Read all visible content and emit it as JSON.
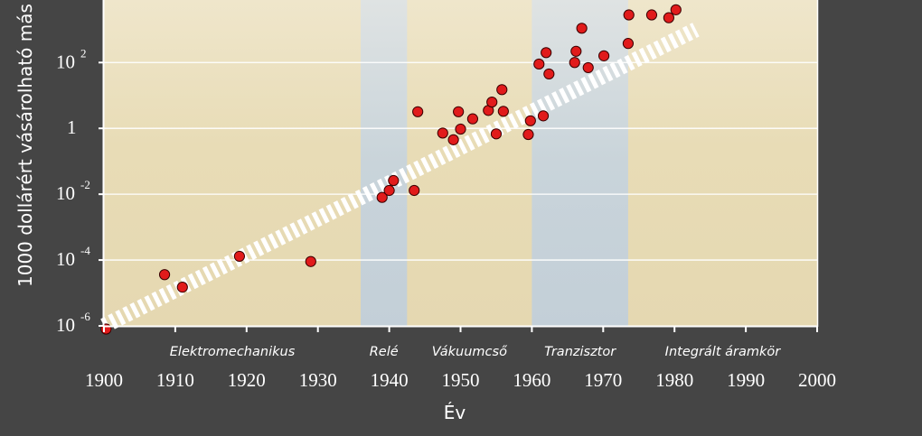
{
  "chart_data": {
    "type": "scatter",
    "title": "",
    "xlabel": "Év",
    "ylabel": "1000 dollárért vásárolható más",
    "xlim": [
      1900,
      2000
    ],
    "ylim_log10": [
      -6,
      3.9
    ],
    "y_scale": "log",
    "grid": true,
    "x_ticks": [
      "1900",
      "1910",
      "1920",
      "1930",
      "1940",
      "1950",
      "1960",
      "1970",
      "1980",
      "1990",
      "2000"
    ],
    "y_ticks": [
      {
        "base": "10",
        "exp": "-6"
      },
      {
        "base": "10",
        "exp": "-4"
      },
      {
        "base": "10",
        "exp": "-2"
      },
      {
        "base": "1",
        "exp": ""
      },
      {
        "base": "10",
        "exp": "2"
      }
    ],
    "eras": [
      {
        "name": "Elektromechanikus",
        "range": [
          1900,
          1936
        ]
      },
      {
        "name": "Relé",
        "range": [
          1936,
          1942.5
        ]
      },
      {
        "name": "Vákuumcső",
        "range": [
          1942.5,
          1960
        ]
      },
      {
        "name": "Tranzisztor",
        "range": [
          1960,
          1973.5
        ]
      },
      {
        "name": "Integrált áramkör",
        "range": [
          1973.5,
          2000
        ]
      }
    ],
    "highlighted_eras": [
      "Relé",
      "Tranzisztor"
    ],
    "trend": {
      "from": [
        1900,
        1e-06
      ],
      "to": [
        1983,
        1000
      ]
    },
    "series": [
      {
        "points": [
          [
            1900.3,
            8e-07
          ],
          [
            1908.5,
            3.6e-05
          ],
          [
            1911,
            1.5e-05
          ],
          [
            1919,
            0.00013
          ],
          [
            1929,
            9e-05
          ],
          [
            1939,
            0.008
          ],
          [
            1940,
            0.013
          ],
          [
            1940.6,
            0.026
          ],
          [
            1943.5,
            0.013
          ],
          [
            1944,
            3.2
          ],
          [
            1947.5,
            0.72
          ],
          [
            1949,
            0.45
          ],
          [
            1949.7,
            3.2
          ],
          [
            1950,
            0.95
          ],
          [
            1951.7,
            1.95
          ],
          [
            1953.9,
            3.5
          ],
          [
            1954.4,
            6.3
          ],
          [
            1955,
            0.68
          ],
          [
            1955.8,
            15
          ],
          [
            1956,
            3.3
          ],
          [
            1959.5,
            0.65
          ],
          [
            1959.8,
            1.7
          ],
          [
            1961,
            90
          ],
          [
            1961.6,
            2.4
          ],
          [
            1962,
            200
          ],
          [
            1962.4,
            45
          ],
          [
            1966,
            100
          ],
          [
            1966.2,
            220
          ],
          [
            1967,
            1100
          ],
          [
            1967.9,
            70
          ],
          [
            1970.1,
            160
          ],
          [
            1973.5,
            380
          ],
          [
            1973.6,
            2800
          ],
          [
            1976.8,
            2800
          ],
          [
            1979.2,
            2300
          ],
          [
            1980.2,
            4000
          ]
        ]
      }
    ],
    "colors": {
      "background": "#454545",
      "plot_top": "#efe6c9",
      "plot_bottom": "#e6dab2",
      "highlight_band": "#c3d0da",
      "point_fill": "#e11b1b",
      "point_stroke": "#3a0000",
      "trend": "#ffffff",
      "text": "#ffffff"
    }
  }
}
